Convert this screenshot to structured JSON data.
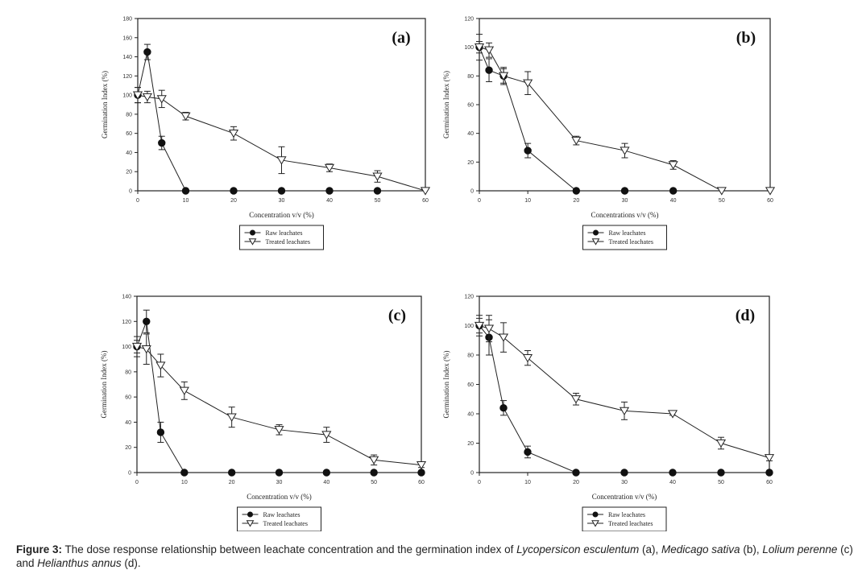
{
  "caption": {
    "label": "Figure 3:",
    "parts": [
      {
        "text": " The dose response relationship between leachate concentration and the germination index of ",
        "italic": false
      },
      {
        "text": "Lycopersicon esculentum",
        "italic": true
      },
      {
        "text": " (a), ",
        "italic": false
      },
      {
        "text": "Medicago sativa",
        "italic": true
      },
      {
        "text": " (b), ",
        "italic": false
      },
      {
        "text": "Lolium perenne",
        "italic": true
      },
      {
        "text": " (c) and ",
        "italic": false
      },
      {
        "text": "Helianthus annus",
        "italic": true
      },
      {
        "text": " (d).",
        "italic": false
      }
    ]
  },
  "chart_data": [
    {
      "type": "line",
      "panel_label": "(a)",
      "xlabel": "Concentration v/v (%)",
      "ylabel": "Germination Index (%)",
      "xlim": [
        0,
        60
      ],
      "ylim": [
        0,
        180
      ],
      "xticks": [
        0,
        10,
        20,
        30,
        40,
        50,
        60
      ],
      "yticks": [
        0,
        20,
        40,
        60,
        80,
        100,
        120,
        140,
        160,
        180
      ],
      "legend_position": "below-center",
      "series": [
        {
          "name": "Raw leachates",
          "marker": "filled-circle",
          "x": [
            0,
            2,
            5,
            10,
            20,
            30,
            40,
            50
          ],
          "y": [
            100,
            145,
            50,
            0,
            0,
            0,
            0,
            0
          ],
          "err": [
            8,
            8,
            7,
            0,
            0,
            0,
            0,
            0
          ]
        },
        {
          "name": "Treated leachates",
          "marker": "open-triangle-down",
          "x": [
            0,
            2,
            5,
            10,
            20,
            30,
            40,
            50,
            60
          ],
          "y": [
            100,
            98,
            96,
            78,
            60,
            32,
            24,
            15,
            0
          ],
          "err": [
            8,
            6,
            9,
            4,
            7,
            14,
            4,
            6,
            0
          ]
        }
      ]
    },
    {
      "type": "line",
      "panel_label": "(b)",
      "xlabel": "Concentrations v/v (%)",
      "ylabel": "Germination Index (%)",
      "xlim": [
        0,
        60
      ],
      "ylim": [
        0,
        120
      ],
      "xticks": [
        0,
        10,
        20,
        30,
        40,
        50,
        60
      ],
      "yticks": [
        0,
        20,
        40,
        60,
        80,
        100,
        120
      ],
      "legend_position": "below-center",
      "series": [
        {
          "name": "Raw leachates",
          "marker": "filled-circle",
          "x": [
            0,
            2,
            5,
            10,
            20,
            30,
            40
          ],
          "y": [
            100,
            84,
            80,
            28,
            0,
            0,
            0
          ],
          "err": [
            9,
            8,
            5,
            5,
            0,
            0,
            0
          ]
        },
        {
          "name": "Treated leachates",
          "marker": "open-triangle-down",
          "x": [
            0,
            2,
            5,
            10,
            20,
            30,
            40,
            50,
            60
          ],
          "y": [
            100,
            98,
            80,
            75,
            35,
            28,
            18,
            0,
            0
          ],
          "err": [
            4,
            5,
            6,
            8,
            3,
            5,
            3,
            0,
            0
          ]
        }
      ]
    },
    {
      "type": "line",
      "panel_label": "(c)",
      "xlabel": "Concentration v/v (%)",
      "ylabel": "Germination Index (%)",
      "xlim": [
        0,
        60
      ],
      "ylim": [
        0,
        140
      ],
      "xticks": [
        0,
        10,
        20,
        30,
        40,
        50,
        60
      ],
      "yticks": [
        0,
        20,
        40,
        60,
        80,
        100,
        120,
        140
      ],
      "legend_position": "below-center",
      "series": [
        {
          "name": "Raw leachates",
          "marker": "filled-circle",
          "x": [
            0,
            2,
            5,
            10,
            20,
            30,
            40,
            50,
            60
          ],
          "y": [
            100,
            120,
            32,
            0,
            0,
            0,
            0,
            0,
            0
          ],
          "err": [
            8,
            9,
            8,
            0,
            0,
            0,
            0,
            0,
            0
          ]
        },
        {
          "name": "Treated leachates",
          "marker": "open-triangle-down",
          "x": [
            0,
            2,
            5,
            10,
            20,
            30,
            40,
            50,
            60
          ],
          "y": [
            100,
            98,
            85,
            65,
            44,
            34,
            30,
            10,
            6
          ],
          "err": [
            5,
            12,
            9,
            7,
            8,
            4,
            6,
            4,
            2
          ]
        }
      ]
    },
    {
      "type": "line",
      "panel_label": "(d)",
      "xlabel": "Concentration v/v (%)",
      "ylabel": "Germination Index (%)",
      "xlim": [
        0,
        60
      ],
      "ylim": [
        0,
        120
      ],
      "xticks": [
        0,
        10,
        20,
        30,
        40,
        50,
        60
      ],
      "yticks": [
        0,
        20,
        40,
        60,
        80,
        100,
        120
      ],
      "legend_position": "below-center",
      "series": [
        {
          "name": "Raw leachates",
          "marker": "filled-circle",
          "x": [
            0,
            2,
            5,
            10,
            20,
            30,
            40,
            50,
            60
          ],
          "y": [
            100,
            92,
            44,
            14,
            0,
            0,
            0,
            0,
            0
          ],
          "err": [
            7,
            12,
            5,
            4,
            0,
            0,
            0,
            0,
            0
          ]
        },
        {
          "name": "Treated leachates",
          "marker": "open-triangle-down",
          "x": [
            0,
            2,
            5,
            10,
            20,
            30,
            40,
            50,
            60
          ],
          "y": [
            100,
            98,
            92,
            78,
            50,
            42,
            40,
            20,
            10
          ],
          "err": [
            5,
            9,
            10,
            5,
            4,
            6,
            1,
            4,
            2
          ]
        }
      ]
    }
  ]
}
